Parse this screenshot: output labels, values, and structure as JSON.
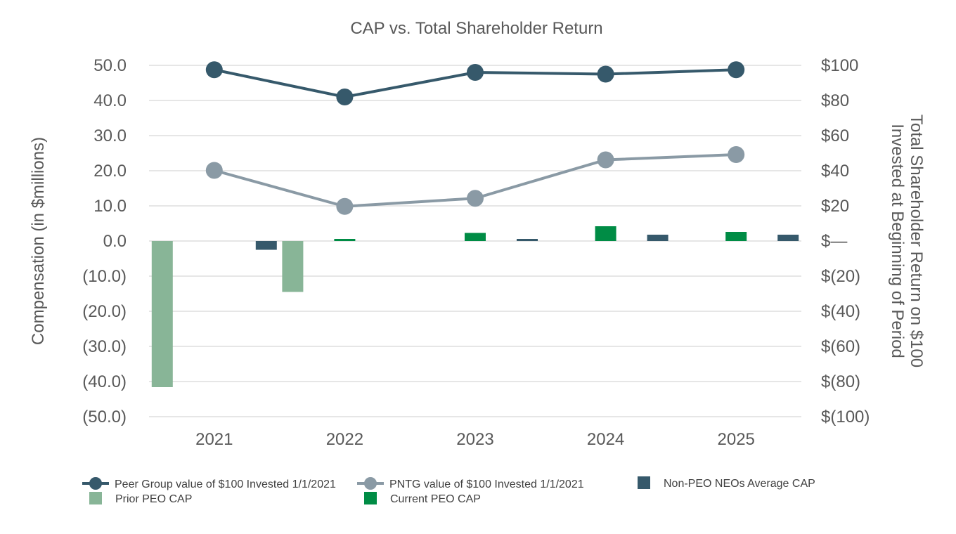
{
  "chart_data": {
    "type": "bar",
    "title": "CAP vs. Total Shareholder Return",
    "categories": [
      "2021",
      "2022",
      "2023",
      "2024",
      "2025"
    ],
    "ylabel": "Compensation (in $millions)",
    "y2label_line1": "Total Shareholder Return on $100",
    "y2label_line2": "Invested at Beginning of Period",
    "ylim": [
      -50,
      50
    ],
    "y2lim": [
      -100,
      100
    ],
    "y_ticks": [
      "50.0",
      "40.0",
      "30.0",
      "20.0",
      "10.0",
      "0.0",
      "(10.0)",
      "(20.0)",
      "(30.0)",
      "(40.0)",
      "(50.0)"
    ],
    "y2_ticks": [
      "$100",
      "$80",
      "$60",
      "$40",
      "$20",
      "$—",
      "$(20)",
      "$(40)",
      "$(60)",
      "$(80)",
      "$(100)"
    ],
    "bar_series": [
      {
        "name": "Prior PEO CAP",
        "color": "#88b597",
        "values": [
          -41.6,
          -14.5,
          null,
          null,
          null
        ]
      },
      {
        "name": "Current PEO CAP",
        "color": "#008c45",
        "values": [
          null,
          0.6,
          2.3,
          4.2,
          2.6
        ]
      },
      {
        "name": "Non-PEO NEOs Average CAP",
        "color": "#36596b",
        "values": [
          -2.5,
          null,
          0.6,
          1.8,
          1.8
        ]
      }
    ],
    "line_series": [
      {
        "name": "Peer Group value of $100 Invested 1/1/2021",
        "color": "#36596b",
        "values": [
          97.5,
          82,
          96,
          95,
          97.5
        ]
      },
      {
        "name": "PNTG value of $100 Invested 1/1/2021",
        "color": "#8a9aa5",
        "values": [
          40.2,
          19.7,
          24.3,
          46.2,
          49.2
        ]
      }
    ],
    "legend_position": "bottom"
  }
}
